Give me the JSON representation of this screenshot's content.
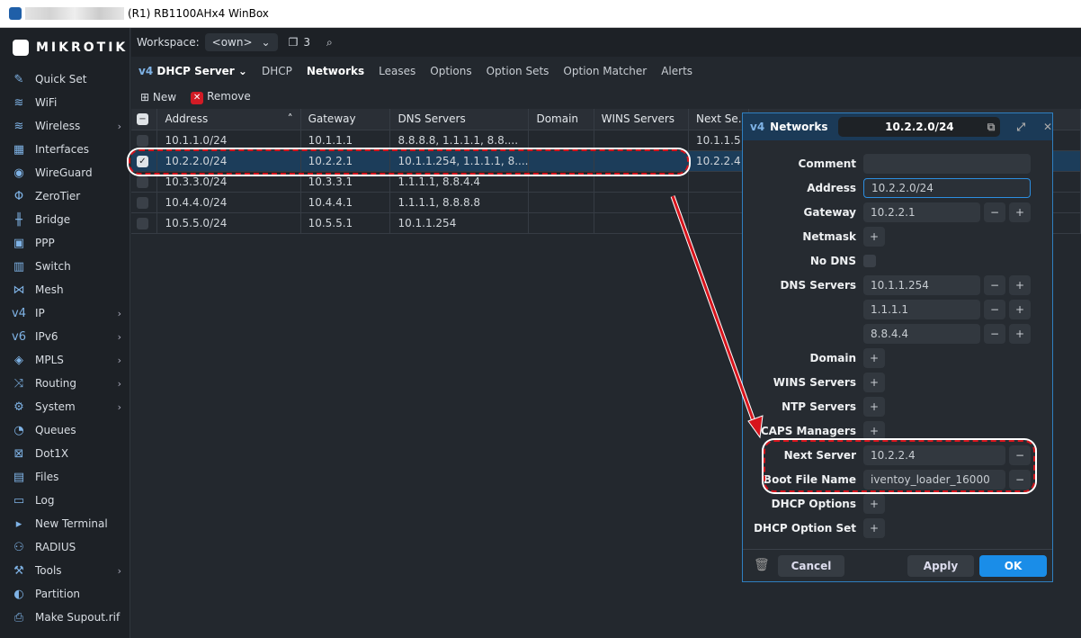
{
  "window": {
    "title": "(R1) RB1100AHx4 WinBox"
  },
  "sidebar": {
    "logo": "MikroTik",
    "items": [
      {
        "label": "Quick Set",
        "icon": "wand-icon",
        "sub": false
      },
      {
        "label": "WiFi",
        "icon": "wifi-icon",
        "sub": false
      },
      {
        "label": "Wireless",
        "icon": "wireless-icon",
        "sub": true
      },
      {
        "label": "Interfaces",
        "icon": "interfaces-icon",
        "sub": false
      },
      {
        "label": "WireGuard",
        "icon": "wireguard-icon",
        "sub": false
      },
      {
        "label": "ZeroTier",
        "icon": "zerotier-icon",
        "sub": false
      },
      {
        "label": "Bridge",
        "icon": "bridge-icon",
        "sub": false
      },
      {
        "label": "PPP",
        "icon": "ppp-icon",
        "sub": false
      },
      {
        "label": "Switch",
        "icon": "switch-icon",
        "sub": false
      },
      {
        "label": "Mesh",
        "icon": "mesh-icon",
        "sub": false
      },
      {
        "label": "IP",
        "icon": "ip-icon",
        "sub": true
      },
      {
        "label": "IPv6",
        "icon": "ipv6-icon",
        "sub": true
      },
      {
        "label": "MPLS",
        "icon": "mpls-icon",
        "sub": true
      },
      {
        "label": "Routing",
        "icon": "routing-icon",
        "sub": true
      },
      {
        "label": "System",
        "icon": "gear-icon",
        "sub": true
      },
      {
        "label": "Queues",
        "icon": "queues-icon",
        "sub": false
      },
      {
        "label": "Dot1X",
        "icon": "dot1x-icon",
        "sub": false
      },
      {
        "label": "Files",
        "icon": "folder-icon",
        "sub": false
      },
      {
        "label": "Log",
        "icon": "log-icon",
        "sub": false
      },
      {
        "label": "New Terminal",
        "icon": "terminal-icon",
        "sub": false
      },
      {
        "label": "RADIUS",
        "icon": "radius-icon",
        "sub": false
      },
      {
        "label": "Tools",
        "icon": "tools-icon",
        "sub": true
      },
      {
        "label": "Partition",
        "icon": "partition-icon",
        "sub": false
      },
      {
        "label": "Make Supout.rif",
        "icon": "supout-icon",
        "sub": false
      }
    ]
  },
  "workspace": {
    "label": "Workspace:",
    "value": "<own>",
    "windows_count": "3"
  },
  "tabs": {
    "section": "DHCP Server",
    "items": [
      "DHCP",
      "Networks",
      "Leases",
      "Options",
      "Option Sets",
      "Option Matcher",
      "Alerts"
    ],
    "active": "Networks"
  },
  "toolbar": {
    "new": "New",
    "remove": "Remove"
  },
  "table": {
    "columns": [
      "Address",
      "Gateway",
      "DNS Servers",
      "Domain",
      "WINS Servers",
      "Next Se..."
    ],
    "rows": [
      {
        "checked": false,
        "cells": [
          "10.1.1.0/24",
          "10.1.1.1",
          "8.8.8.8, 1.1.1.1, 8.8....",
          "",
          "",
          "10.1.1.5"
        ]
      },
      {
        "checked": true,
        "cells": [
          "10.2.2.0/24",
          "10.2.2.1",
          "10.1.1.254, 1.1.1.1, 8....",
          "",
          "",
          "10.2.2.4"
        ]
      },
      {
        "checked": false,
        "cells": [
          "10.3.3.0/24",
          "10.3.3.1",
          "1.1.1.1, 8.8.4.4",
          "",
          "",
          ""
        ]
      },
      {
        "checked": false,
        "cells": [
          "10.4.4.0/24",
          "10.4.4.1",
          "1.1.1.1, 8.8.8.8",
          "",
          "",
          ""
        ]
      },
      {
        "checked": false,
        "cells": [
          "10.5.5.0/24",
          "10.5.5.1",
          "10.1.1.254",
          "",
          "",
          ""
        ]
      }
    ]
  },
  "dialog": {
    "title": "Networks",
    "record": "10.2.2.0/24",
    "labels": {
      "comment": "Comment",
      "address": "Address",
      "gateway": "Gateway",
      "netmask": "Netmask",
      "no_dns": "No DNS",
      "dns": "DNS Servers",
      "domain": "Domain",
      "wins": "WINS Servers",
      "ntp": "NTP Servers",
      "caps": "CAPS Managers",
      "next_server": "Next Server",
      "boot_file": "Boot File Name",
      "dhcp_options": "DHCP Options",
      "dhcp_option_set": "DHCP Option Set"
    },
    "values": {
      "comment": "",
      "address": "10.2.2.0/24",
      "gateway": "10.2.2.1",
      "dns": [
        "10.1.1.254",
        "1.1.1.1",
        "8.8.4.4"
      ],
      "next_server": "10.2.2.4",
      "boot_file": "iventoy_loader_16000"
    },
    "buttons": {
      "cancel": "Cancel",
      "apply": "Apply",
      "ok": "OK"
    }
  },
  "colors": {
    "accent": "#1a8de8",
    "highlight": "#d7141c",
    "selected_row": "#1c3d5a"
  }
}
